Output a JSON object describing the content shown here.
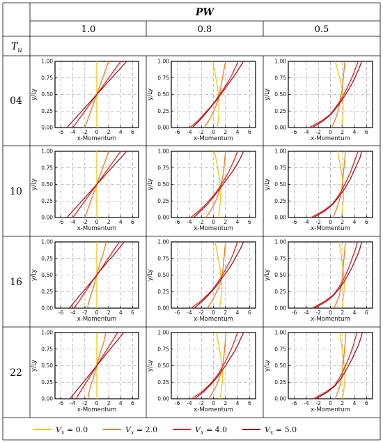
{
  "table": {
    "header_group": "PW",
    "row_header": "T",
    "row_header_sub": "u",
    "columns": [
      "1.0",
      "0.8",
      "0.5"
    ],
    "rows": [
      "04",
      "10",
      "16",
      "22"
    ]
  },
  "legend": {
    "prefix": "V",
    "prefix_sub": "x",
    "items": [
      {
        "value": "0.0",
        "color": "#f5c400"
      },
      {
        "value": "2.0",
        "color": "#f37a1f"
      },
      {
        "value": "4.0",
        "color": "#e0201b"
      },
      {
        "value": "5.0",
        "color": "#9e0f1f"
      }
    ]
  },
  "chart_data": {
    "type": "line",
    "layout": "4x3 small multiples",
    "xlabel": "x-Momentum",
    "ylabel": "y/Ly",
    "xlim": [
      -7,
      7
    ],
    "ylim": [
      0,
      1
    ],
    "xticks": [
      -6,
      -4,
      -2,
      0,
      2,
      4,
      6
    ],
    "yticks": [
      "0.00",
      "0.25",
      "0.50",
      "0.75",
      "1.00"
    ],
    "grid": true,
    "series_names": [
      "Vx = 0.0",
      "Vx = 2.0",
      "Vx = 4.0",
      "Vx = 5.0"
    ],
    "y_points": [
      0,
      0.1,
      0.2,
      0.3,
      0.4,
      0.5,
      0.6,
      0.7,
      0.8,
      0.9,
      1.0
    ],
    "panels": [
      {
        "Tu": "04",
        "PW": "1.0",
        "series": [
          {
            "name": "Vx = 0.0",
            "x": [
              0.0,
              0.0,
              0.0,
              0.0,
              0.0,
              0.0,
              0.0,
              0.0,
              0.0,
              0.0,
              0.0
            ]
          },
          {
            "name": "Vx = 2.0",
            "x": [
              -2.0,
              -1.6,
              -1.2,
              -0.8,
              -0.4,
              0.0,
              0.4,
              0.8,
              1.2,
              1.6,
              2.0
            ]
          },
          {
            "name": "Vx = 4.0",
            "x": [
              -4.0,
              -3.2,
              -2.4,
              -1.6,
              -0.8,
              0.0,
              0.8,
              1.6,
              2.4,
              3.2,
              4.0
            ]
          },
          {
            "name": "Vx = 5.0",
            "x": [
              -5.0,
              -4.0,
              -3.0,
              -2.0,
              -1.0,
              0.0,
              1.0,
              2.0,
              3.0,
              4.0,
              5.0
            ]
          }
        ]
      },
      {
        "Tu": "04",
        "PW": "0.8",
        "series": [
          {
            "name": "Vx = 0.0",
            "x": [
              0.6,
              0.8,
              0.9,
              0.9,
              0.9,
              0.8,
              0.7,
              0.5,
              0.3,
              0.1,
              -0.1
            ]
          },
          {
            "name": "Vx = 2.0",
            "x": [
              -1.5,
              -0.8,
              -0.2,
              0.3,
              0.7,
              1.0,
              1.2,
              1.4,
              1.6,
              1.8,
              2.0
            ]
          },
          {
            "name": "Vx = 4.0",
            "x": [
              -3.9,
              -2.6,
              -1.6,
              -0.6,
              0.3,
              1.0,
              1.8,
              2.5,
              3.1,
              3.6,
              4.1
            ]
          },
          {
            "name": "Vx = 5.0",
            "x": [
              -3.5,
              -2.4,
              -1.4,
              -0.5,
              0.4,
              1.2,
              2.0,
              2.8,
              3.6,
              4.3,
              5.0
            ]
          }
        ]
      },
      {
        "Tu": "04",
        "PW": "0.5",
        "series": [
          {
            "name": "Vx = 0.0",
            "x": [
              1.8,
              2.0,
              2.1,
              2.1,
              2.1,
              2.0,
              1.9,
              1.7,
              1.4,
              1.1,
              0.8
            ]
          },
          {
            "name": "Vx = 2.0",
            "x": [
              0.2,
              0.7,
              1.1,
              1.4,
              1.6,
              1.8,
              2.0,
              2.1,
              2.2,
              2.3,
              2.4
            ]
          },
          {
            "name": "Vx = 4.0",
            "x": [
              -3.5,
              -1.5,
              0.0,
              0.8,
              1.6,
              2.2,
              2.8,
              3.3,
              3.8,
              4.2,
              4.6
            ]
          },
          {
            "name": "Vx = 5.0",
            "x": [
              -3.0,
              -1.2,
              0.1,
              1.0,
              1.8,
              2.5,
              3.2,
              3.8,
              4.3,
              4.8,
              5.2
            ]
          }
        ]
      },
      {
        "Tu": "10",
        "PW": "1.0",
        "series": [
          {
            "name": "Vx = 0.0",
            "x": [
              0.0,
              0.0,
              0.0,
              0.0,
              0.0,
              0.0,
              0.0,
              0.0,
              0.0,
              0.0,
              0.0
            ]
          },
          {
            "name": "Vx = 2.0",
            "x": [
              -2.0,
              -1.6,
              -1.2,
              -0.8,
              -0.4,
              0.0,
              0.4,
              0.8,
              1.2,
              1.6,
              2.0
            ]
          },
          {
            "name": "Vx = 4.0",
            "x": [
              -4.0,
              -3.2,
              -2.4,
              -1.6,
              -0.8,
              0.0,
              0.8,
              1.6,
              2.4,
              3.2,
              4.0
            ]
          },
          {
            "name": "Vx = 5.0",
            "x": [
              -5.0,
              -4.0,
              -3.0,
              -2.0,
              -1.0,
              0.0,
              1.0,
              2.0,
              3.0,
              4.0,
              5.0
            ]
          }
        ]
      },
      {
        "Tu": "10",
        "PW": "0.8",
        "series": [
          {
            "name": "Vx = 0.0",
            "x": [
              0.8,
              1.0,
              1.1,
              1.2,
              1.2,
              1.1,
              1.0,
              0.8,
              0.6,
              0.4,
              0.1
            ]
          },
          {
            "name": "Vx = 2.0",
            "x": [
              -1.2,
              -0.5,
              0.1,
              0.6,
              1.0,
              1.3,
              1.5,
              1.7,
              1.8,
              1.9,
              2.0
            ]
          },
          {
            "name": "Vx = 4.0",
            "x": [
              -3.8,
              -2.4,
              -1.3,
              -0.3,
              0.6,
              1.3,
              2.0,
              2.6,
              3.1,
              3.6,
              4.0
            ]
          },
          {
            "name": "Vx = 5.0",
            "x": [
              -3.3,
              -2.1,
              -1.0,
              -0.1,
              0.8,
              1.6,
              2.4,
              3.2,
              3.9,
              4.5,
              5.0
            ]
          }
        ]
      },
      {
        "Tu": "10",
        "PW": "0.5",
        "series": [
          {
            "name": "Vx = 0.0",
            "x": [
              1.8,
              2.0,
              2.1,
              2.2,
              2.2,
              2.1,
              2.0,
              1.8,
              1.6,
              1.4,
              1.2
            ]
          },
          {
            "name": "Vx = 2.0",
            "x": [
              0.4,
              0.9,
              1.3,
              1.6,
              1.8,
              2.0,
              2.1,
              2.2,
              2.3,
              2.4,
              2.5
            ]
          },
          {
            "name": "Vx = 4.0",
            "x": [
              -3.2,
              -1.2,
              0.3,
              1.1,
              1.8,
              2.4,
              2.9,
              3.4,
              3.8,
              4.2,
              4.6
            ]
          },
          {
            "name": "Vx = 5.0",
            "x": [
              -2.8,
              -0.9,
              0.4,
              1.3,
              2.1,
              2.8,
              3.4,
              3.9,
              4.4,
              4.9,
              5.2
            ]
          }
        ]
      },
      {
        "Tu": "16",
        "PW": "1.0",
        "series": [
          {
            "name": "Vx = 0.0",
            "x": [
              0.0,
              0.0,
              0.0,
              0.0,
              0.0,
              0.0,
              0.0,
              0.0,
              0.0,
              0.0,
              0.0
            ]
          },
          {
            "name": "Vx = 2.0",
            "x": [
              -1.6,
              -1.3,
              -1.0,
              -0.6,
              -0.3,
              0.0,
              0.3,
              0.6,
              1.0,
              1.3,
              1.6
            ]
          },
          {
            "name": "Vx = 4.0",
            "x": [
              -3.8,
              -3.0,
              -2.3,
              -1.5,
              -0.8,
              0.0,
              0.8,
              1.5,
              2.3,
              3.0,
              3.8
            ]
          },
          {
            "name": "Vx = 5.0",
            "x": [
              -4.6,
              -3.7,
              -2.8,
              -1.8,
              -0.9,
              0.0,
              0.9,
              1.8,
              2.8,
              3.7,
              4.6
            ]
          }
        ]
      },
      {
        "Tu": "16",
        "PW": "0.8",
        "series": [
          {
            "name": "Vx = 0.0",
            "x": [
              1.0,
              1.2,
              1.3,
              1.3,
              1.3,
              1.2,
              1.1,
              0.9,
              0.7,
              0.5,
              0.3
            ]
          },
          {
            "name": "Vx = 2.0",
            "x": [
              -1.0,
              -0.3,
              0.3,
              0.8,
              1.2,
              1.4,
              1.6,
              1.7,
              1.8,
              1.9,
              2.0
            ]
          },
          {
            "name": "Vx = 4.0",
            "x": [
              -3.7,
              -2.2,
              -1.0,
              0.0,
              0.8,
              1.5,
              2.1,
              2.7,
              3.2,
              3.6,
              4.0
            ]
          },
          {
            "name": "Vx = 5.0",
            "x": [
              -3.2,
              -1.9,
              -0.8,
              0.2,
              1.0,
              1.8,
              2.6,
              3.3,
              3.9,
              4.5,
              5.0
            ]
          }
        ]
      },
      {
        "Tu": "16",
        "PW": "0.5",
        "series": [
          {
            "name": "Vx = 0.0",
            "x": [
              1.9,
              2.1,
              2.2,
              2.3,
              2.3,
              2.2,
              2.1,
              1.9,
              1.8,
              1.6,
              1.5
            ]
          },
          {
            "name": "Vx = 2.0",
            "x": [
              0.6,
              1.1,
              1.5,
              1.7,
              1.9,
              2.0,
              2.1,
              2.2,
              2.3,
              2.4,
              2.5
            ]
          },
          {
            "name": "Vx = 4.0",
            "x": [
              -3.0,
              -1.0,
              0.5,
              1.3,
              2.0,
              2.5,
              3.0,
              3.4,
              3.8,
              4.2,
              4.5
            ]
          },
          {
            "name": "Vx = 5.0",
            "x": [
              -2.6,
              -0.7,
              0.6,
              1.5,
              2.3,
              2.9,
              3.5,
              4.0,
              4.5,
              4.9,
              5.2
            ]
          }
        ]
      },
      {
        "Tu": "22",
        "PW": "1.0",
        "series": [
          {
            "name": "Vx = 0.0",
            "x": [
              0.0,
              0.0,
              0.0,
              0.0,
              0.0,
              0.0,
              0.0,
              0.0,
              0.0,
              0.0,
              0.0
            ]
          },
          {
            "name": "Vx = 2.0",
            "x": [
              -1.5,
              -1.3,
              -1.0,
              -0.6,
              -0.3,
              0.0,
              0.3,
              0.6,
              1.0,
              1.3,
              1.5
            ]
          },
          {
            "name": "Vx = 4.0",
            "x": [
              -3.5,
              -2.8,
              -2.1,
              -1.4,
              -0.7,
              0.0,
              0.7,
              1.4,
              2.1,
              2.8,
              3.5
            ]
          },
          {
            "name": "Vx = 5.0",
            "x": [
              -4.5,
              -3.6,
              -2.7,
              -1.8,
              -0.9,
              0.0,
              0.9,
              1.8,
              2.7,
              3.6,
              4.5
            ]
          }
        ]
      },
      {
        "Tu": "22",
        "PW": "0.8",
        "series": [
          {
            "name": "Vx = 0.0",
            "x": [
              1.1,
              1.3,
              1.4,
              1.5,
              1.5,
              1.4,
              1.3,
              1.1,
              0.9,
              0.7,
              0.5
            ]
          },
          {
            "name": "Vx = 2.0",
            "x": [
              -0.8,
              -0.1,
              0.5,
              0.9,
              1.3,
              1.5,
              1.7,
              1.8,
              1.9,
              2.0,
              2.1
            ]
          },
          {
            "name": "Vx = 4.0",
            "x": [
              -3.6,
              -2.0,
              -0.8,
              0.2,
              1.0,
              1.6,
              2.2,
              2.7,
              3.2,
              3.6,
              4.0
            ]
          },
          {
            "name": "Vx = 5.0",
            "x": [
              -3.1,
              -1.7,
              -0.6,
              0.4,
              1.2,
              2.0,
              2.7,
              3.4,
              4.0,
              4.5,
              5.0
            ]
          }
        ]
      },
      {
        "Tu": "22",
        "PW": "0.5",
        "series": [
          {
            "name": "Vx = 0.0",
            "x": [
              2.0,
              2.2,
              2.3,
              2.4,
              2.4,
              2.3,
              2.2,
              2.0,
              1.9,
              1.7,
              1.6
            ]
          },
          {
            "name": "Vx = 2.0",
            "x": [
              0.8,
              1.2,
              1.6,
              1.8,
              2.0,
              2.1,
              2.2,
              2.3,
              2.4,
              2.5,
              2.6
            ]
          },
          {
            "name": "Vx = 4.0",
            "x": [
              -2.8,
              -0.8,
              0.7,
              1.4,
              2.0,
              2.5,
              3.0,
              3.4,
              3.8,
              4.1,
              4.4
            ]
          },
          {
            "name": "Vx = 5.0",
            "x": [
              -2.4,
              -0.5,
              0.8,
              1.7,
              2.4,
              3.0,
              3.6,
              4.1,
              4.6,
              5.0,
              5.3
            ]
          }
        ]
      }
    ]
  }
}
